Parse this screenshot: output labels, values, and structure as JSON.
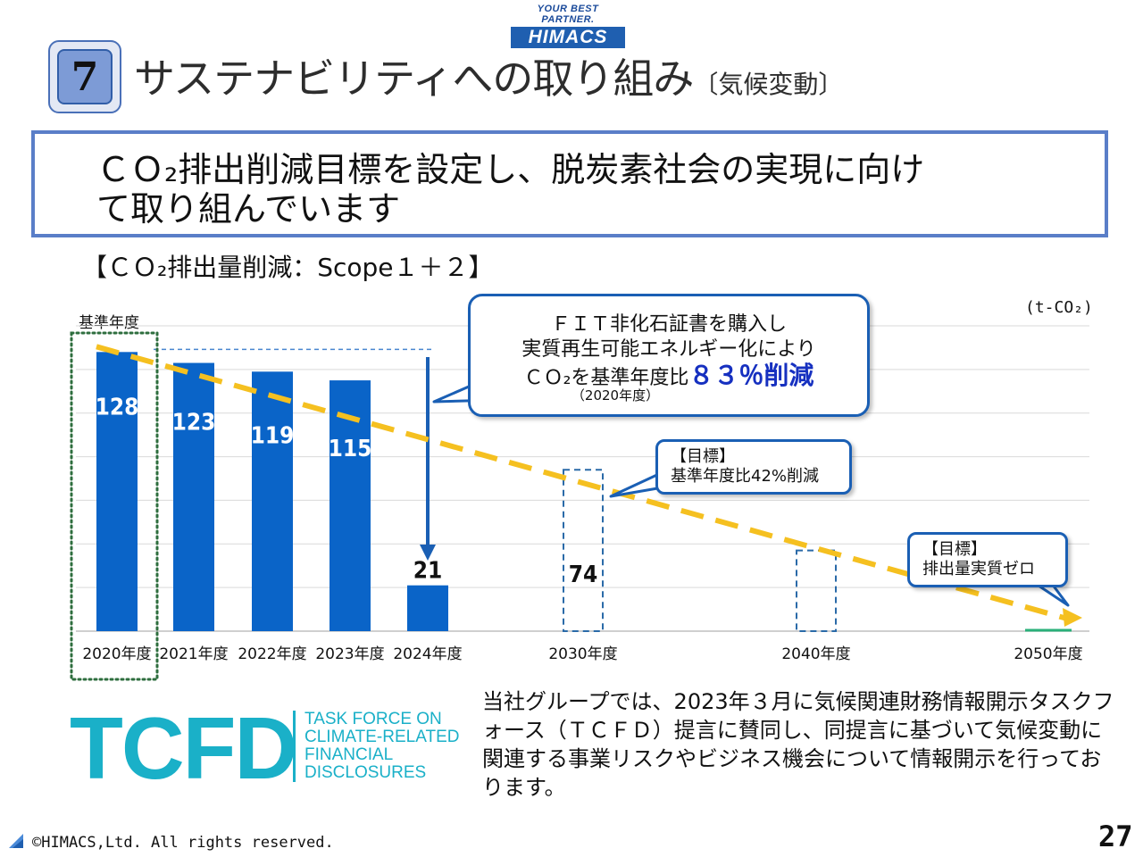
{
  "logo": {
    "tagline": "YOUR BEST PARTNER.",
    "wordmark": "HIMACS"
  },
  "section": {
    "number": "7",
    "title": "サステナビリティへの取り組み",
    "subtitle": "〔気候変動〕"
  },
  "message": {
    "line1": "ＣＯ₂排出削減目標を設定し、脱炭素社会の実現に向け",
    "line2": "て取り組んでいます"
  },
  "chart_label": "【ＣＯ₂排出量削減：Scope１＋２】",
  "chart_data": {
    "type": "bar",
    "title": "ＣＯ₂排出量削減：Scope１＋２",
    "unit": "(t-CO₂)",
    "ylabel": "t-CO₂",
    "ylim": [
      0,
      140
    ],
    "grid": true,
    "base_year_label": "基準年度",
    "bars": [
      {
        "category": "2020年度",
        "value": 128,
        "label": "128",
        "kind": "actual"
      },
      {
        "category": "2021年度",
        "value": 123,
        "label": "123",
        "kind": "actual"
      },
      {
        "category": "2022年度",
        "value": 119,
        "label": "119",
        "kind": "actual"
      },
      {
        "category": "2023年度",
        "value": 115,
        "label": "115",
        "kind": "actual"
      },
      {
        "category": "2024年度",
        "value": 21,
        "label": "21",
        "kind": "actual"
      },
      {
        "category": "2030年度",
        "value": 74,
        "label": "74",
        "kind": "target"
      },
      {
        "category": "2040年度",
        "value": 37,
        "label": "",
        "kind": "target"
      },
      {
        "category": "2050年度",
        "value": 0,
        "label": "",
        "kind": "target"
      }
    ],
    "trend": {
      "from": 128,
      "to": 0,
      "color": "#f5c020"
    },
    "reference_line": {
      "value": 128,
      "from": "2021年度",
      "to": "2024年度"
    }
  },
  "callouts": {
    "fit": {
      "line1": "ＦＩＴ非化石証書を購入し",
      "line2": "実質再生可能エネルギー化により",
      "line3_prefix": "ＣＯ₂を基準年度比",
      "line3_highlight": "８３％削減",
      "note": "（2020年度）"
    },
    "target_2030": {
      "line1": "【目標】",
      "line2": "基準年度比42%削減"
    },
    "target_2050": {
      "line1": "【目標】",
      "line2": "排出量実質ゼロ"
    }
  },
  "tcfd": {
    "logo_text": "TCFD",
    "full_name": [
      "TASK FORCE ON",
      "CLIMATE-RELATED",
      "FINANCIAL",
      "DISCLOSURES"
    ],
    "description": "当社グループでは、2023年３月に気候関連財務情報開示タスクフォース（ＴＣＦＤ）提言に賛同し、同提言に基づいて気候変動に関連する事業リスクやビジネス機会について情報開示を行っております。"
  },
  "footer": {
    "copyright": "©HIMACS,Ltd. All rights reserved.",
    "page_number": "27"
  },
  "colors": {
    "bar": "#0a64c8",
    "accent": "#5a7ec8",
    "trend": "#f5c020",
    "base_box": "#2e6e3e",
    "tcfd": "#1ab0c8"
  }
}
